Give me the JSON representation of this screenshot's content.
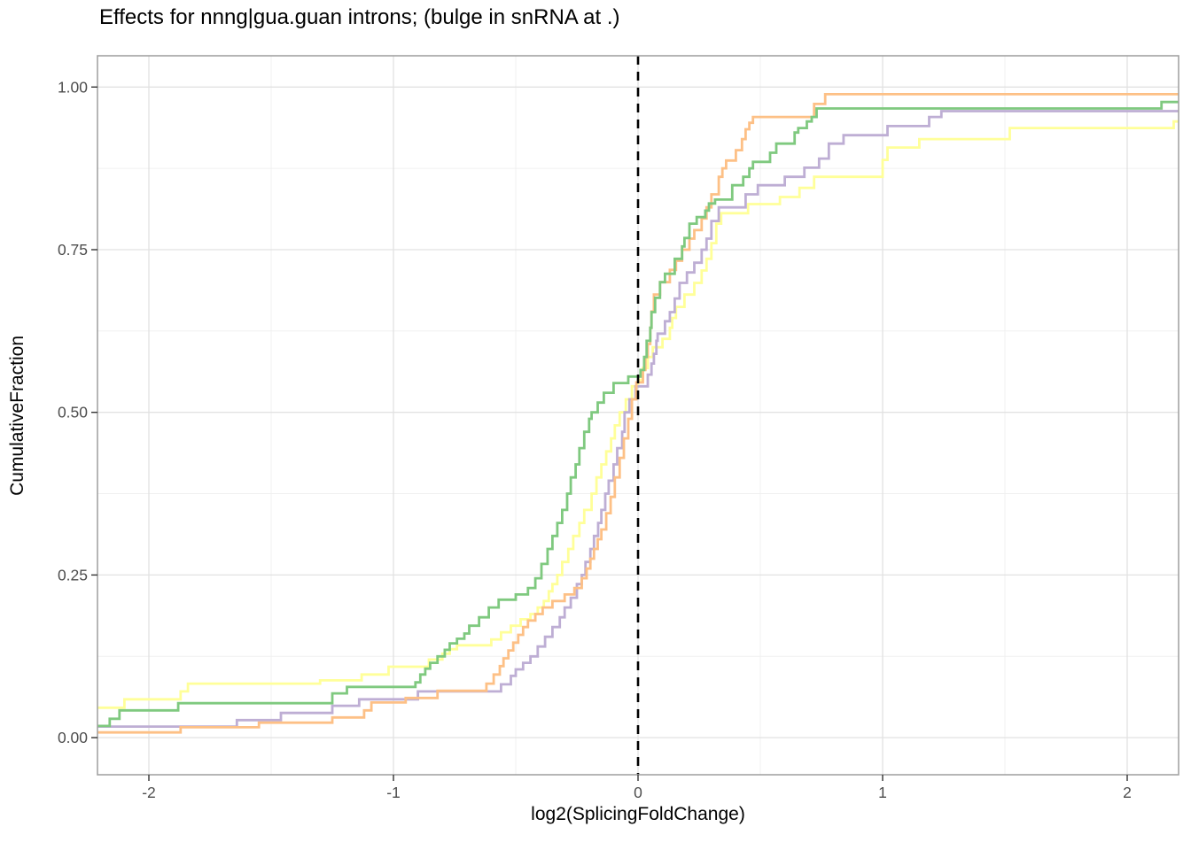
{
  "chart_data": {
    "type": "line",
    "subtype": "ecdf_step",
    "title": "Effects for nnng|gua.guan introns; (bulge in snRNA at .)",
    "xlabel": "log2(SplicingFoldChange)",
    "ylabel": "CumulativeFraction",
    "xlim": [
      -2.21,
      2.21
    ],
    "ylim": [
      -0.057,
      1.048
    ],
    "grid": true,
    "legend": "none",
    "xticks": {
      "values": [
        -2,
        -1,
        0,
        1,
        2
      ],
      "labels": [
        "-2",
        "-1",
        "0",
        "1",
        "2"
      ]
    },
    "yticks": {
      "values": [
        0,
        0.25,
        0.5,
        0.75,
        1
      ],
      "labels": [
        "0.00",
        "0.25",
        "0.50",
        "0.75",
        "1.00"
      ]
    },
    "xminor": [
      -1.5,
      -0.5,
      0.5,
      1.5
    ],
    "yminor": [
      0.125,
      0.375,
      0.625,
      0.875
    ],
    "vline": {
      "x": 0,
      "style": "dashed",
      "color": "#000000"
    },
    "panel_border_color": "#a3a3a3",
    "grid_major_color": "#e2e2e2",
    "grid_minor_color": "#f0f0f0",
    "tick_color": "#333333",
    "series": [
      {
        "name": "yellow",
        "color": "#FFFF99",
        "points": [
          [
            -2.21,
            0.046
          ],
          [
            -2.1,
            0.059
          ],
          [
            -1.87,
            0.071
          ],
          [
            -1.84,
            0.083
          ],
          [
            -1.3,
            0.088
          ],
          [
            -1.13,
            0.097
          ],
          [
            -1.02,
            0.109
          ],
          [
            -0.855,
            0.12
          ],
          [
            -0.8,
            0.129
          ],
          [
            -0.77,
            0.136
          ],
          [
            -0.74,
            0.142
          ],
          [
            -0.6,
            0.151
          ],
          [
            -0.56,
            0.162
          ],
          [
            -0.52,
            0.172
          ],
          [
            -0.48,
            0.182
          ],
          [
            -0.44,
            0.19
          ],
          [
            -0.41,
            0.2
          ],
          [
            -0.385,
            0.21
          ],
          [
            -0.365,
            0.225
          ],
          [
            -0.35,
            0.236
          ],
          [
            -0.33,
            0.25
          ],
          [
            -0.31,
            0.27
          ],
          [
            -0.285,
            0.29
          ],
          [
            -0.265,
            0.31
          ],
          [
            -0.24,
            0.33
          ],
          [
            -0.22,
            0.35
          ],
          [
            -0.19,
            0.375
          ],
          [
            -0.17,
            0.4
          ],
          [
            -0.15,
            0.42
          ],
          [
            -0.13,
            0.44
          ],
          [
            -0.11,
            0.46
          ],
          [
            -0.095,
            0.48
          ],
          [
            -0.075,
            0.5
          ],
          [
            -0.05,
            0.52
          ],
          [
            -0.025,
            0.54
          ],
          [
            0.0,
            0.55
          ],
          [
            0.02,
            0.568
          ],
          [
            0.04,
            0.585
          ],
          [
            0.06,
            0.6
          ],
          [
            0.1,
            0.613
          ],
          [
            0.13,
            0.63
          ],
          [
            0.14,
            0.645
          ],
          [
            0.155,
            0.662
          ],
          [
            0.19,
            0.681
          ],
          [
            0.23,
            0.699
          ],
          [
            0.26,
            0.718
          ],
          [
            0.28,
            0.736
          ],
          [
            0.3,
            0.76
          ],
          [
            0.32,
            0.79
          ],
          [
            0.34,
            0.806
          ],
          [
            0.45,
            0.82
          ],
          [
            0.58,
            0.831
          ],
          [
            0.66,
            0.845
          ],
          [
            0.72,
            0.862
          ],
          [
            1.0,
            0.888
          ],
          [
            1.02,
            0.907
          ],
          [
            1.15,
            0.92
          ],
          [
            1.52,
            0.937
          ],
          [
            2.19,
            0.947
          ]
        ]
      },
      {
        "name": "purple",
        "color": "#BEAED4",
        "points": [
          [
            -2.21,
            0.017
          ],
          [
            -1.64,
            0.027
          ],
          [
            -1.46,
            0.038
          ],
          [
            -1.25,
            0.049
          ],
          [
            -1.14,
            0.059
          ],
          [
            -0.9,
            0.071
          ],
          [
            -0.56,
            0.082
          ],
          [
            -0.52,
            0.095
          ],
          [
            -0.5,
            0.105
          ],
          [
            -0.47,
            0.115
          ],
          [
            -0.44,
            0.125
          ],
          [
            -0.41,
            0.14
          ],
          [
            -0.38,
            0.155
          ],
          [
            -0.35,
            0.17
          ],
          [
            -0.32,
            0.185
          ],
          [
            -0.3,
            0.2
          ],
          [
            -0.275,
            0.215
          ],
          [
            -0.25,
            0.236
          ],
          [
            -0.23,
            0.25
          ],
          [
            -0.215,
            0.27
          ],
          [
            -0.195,
            0.29
          ],
          [
            -0.18,
            0.31
          ],
          [
            -0.163,
            0.33
          ],
          [
            -0.15,
            0.35
          ],
          [
            -0.134,
            0.375
          ],
          [
            -0.12,
            0.395
          ],
          [
            -0.1,
            0.42
          ],
          [
            -0.085,
            0.445
          ],
          [
            -0.065,
            0.47
          ],
          [
            -0.055,
            0.5
          ],
          [
            -0.035,
            0.52
          ],
          [
            -0.01,
            0.54
          ],
          [
            0.04,
            0.558
          ],
          [
            0.055,
            0.575
          ],
          [
            0.065,
            0.59
          ],
          [
            0.075,
            0.61
          ],
          [
            0.08,
            0.621
          ],
          [
            0.11,
            0.64
          ],
          [
            0.13,
            0.654
          ],
          [
            0.15,
            0.675
          ],
          [
            0.17,
            0.699
          ],
          [
            0.2,
            0.715
          ],
          [
            0.23,
            0.73
          ],
          [
            0.26,
            0.75
          ],
          [
            0.28,
            0.767
          ],
          [
            0.3,
            0.794
          ],
          [
            0.33,
            0.815
          ],
          [
            0.44,
            0.835
          ],
          [
            0.49,
            0.849
          ],
          [
            0.6,
            0.862
          ],
          [
            0.68,
            0.876
          ],
          [
            0.74,
            0.89
          ],
          [
            0.78,
            0.913
          ],
          [
            0.84,
            0.926
          ],
          [
            1.02,
            0.94
          ],
          [
            1.19,
            0.954
          ],
          [
            1.24,
            0.963
          ]
        ]
      },
      {
        "name": "orange",
        "color": "#FDC086",
        "points": [
          [
            -2.21,
            0.008
          ],
          [
            -1.87,
            0.016
          ],
          [
            -1.55,
            0.023
          ],
          [
            -1.25,
            0.031
          ],
          [
            -1.12,
            0.042
          ],
          [
            -1.09,
            0.054
          ],
          [
            -0.95,
            0.061
          ],
          [
            -0.82,
            0.072
          ],
          [
            -0.62,
            0.083
          ],
          [
            -0.59,
            0.097
          ],
          [
            -0.565,
            0.11
          ],
          [
            -0.55,
            0.122
          ],
          [
            -0.53,
            0.134
          ],
          [
            -0.51,
            0.146
          ],
          [
            -0.49,
            0.158
          ],
          [
            -0.47,
            0.17
          ],
          [
            -0.45,
            0.18
          ],
          [
            -0.42,
            0.19
          ],
          [
            -0.39,
            0.2
          ],
          [
            -0.35,
            0.21
          ],
          [
            -0.3,
            0.22
          ],
          [
            -0.26,
            0.23
          ],
          [
            -0.23,
            0.245
          ],
          [
            -0.21,
            0.26
          ],
          [
            -0.195,
            0.275
          ],
          [
            -0.18,
            0.29
          ],
          [
            -0.165,
            0.305
          ],
          [
            -0.15,
            0.32
          ],
          [
            -0.13,
            0.345
          ],
          [
            -0.112,
            0.37
          ],
          [
            -0.095,
            0.4
          ],
          [
            -0.075,
            0.43
          ],
          [
            -0.058,
            0.46
          ],
          [
            -0.04,
            0.49
          ],
          [
            -0.025,
            0.52
          ],
          [
            -0.007,
            0.546
          ],
          [
            0.02,
            0.565
          ],
          [
            0.03,
            0.585
          ],
          [
            0.04,
            0.605
          ],
          [
            0.05,
            0.63
          ],
          [
            0.055,
            0.655
          ],
          [
            0.065,
            0.681
          ],
          [
            0.09,
            0.7
          ],
          [
            0.13,
            0.719
          ],
          [
            0.155,
            0.733
          ],
          [
            0.18,
            0.75
          ],
          [
            0.21,
            0.767
          ],
          [
            0.23,
            0.78
          ],
          [
            0.26,
            0.798
          ],
          [
            0.28,
            0.815
          ],
          [
            0.3,
            0.835
          ],
          [
            0.33,
            0.862
          ],
          [
            0.345,
            0.875
          ],
          [
            0.36,
            0.887
          ],
          [
            0.4,
            0.903
          ],
          [
            0.425,
            0.92
          ],
          [
            0.44,
            0.935
          ],
          [
            0.455,
            0.945
          ],
          [
            0.47,
            0.954
          ],
          [
            0.72,
            0.974
          ],
          [
            0.765,
            0.989
          ]
        ]
      },
      {
        "name": "green",
        "color": "#7FC97F",
        "points": [
          [
            -2.21,
            0.018
          ],
          [
            -2.16,
            0.029
          ],
          [
            -2.12,
            0.042
          ],
          [
            -1.88,
            0.053
          ],
          [
            -1.25,
            0.068
          ],
          [
            -1.19,
            0.078
          ],
          [
            -0.91,
            0.085
          ],
          [
            -0.89,
            0.097
          ],
          [
            -0.87,
            0.106
          ],
          [
            -0.85,
            0.115
          ],
          [
            -0.82,
            0.125
          ],
          [
            -0.79,
            0.135
          ],
          [
            -0.77,
            0.145
          ],
          [
            -0.74,
            0.152
          ],
          [
            -0.71,
            0.16
          ],
          [
            -0.69,
            0.172
          ],
          [
            -0.65,
            0.185
          ],
          [
            -0.61,
            0.2
          ],
          [
            -0.57,
            0.212
          ],
          [
            -0.5,
            0.22
          ],
          [
            -0.45,
            0.23
          ],
          [
            -0.42,
            0.245
          ],
          [
            -0.395,
            0.267
          ],
          [
            -0.37,
            0.29
          ],
          [
            -0.35,
            0.31
          ],
          [
            -0.33,
            0.33
          ],
          [
            -0.31,
            0.35
          ],
          [
            -0.29,
            0.375
          ],
          [
            -0.275,
            0.4
          ],
          [
            -0.255,
            0.42
          ],
          [
            -0.24,
            0.445
          ],
          [
            -0.22,
            0.47
          ],
          [
            -0.2,
            0.49
          ],
          [
            -0.19,
            0.5
          ],
          [
            -0.165,
            0.515
          ],
          [
            -0.14,
            0.53
          ],
          [
            -0.1,
            0.545
          ],
          [
            -0.04,
            0.555
          ],
          [
            0.01,
            0.565
          ],
          [
            0.025,
            0.585
          ],
          [
            0.035,
            0.61
          ],
          [
            0.05,
            0.63
          ],
          [
            0.055,
            0.654
          ],
          [
            0.07,
            0.676
          ],
          [
            0.09,
            0.7
          ],
          [
            0.11,
            0.713
          ],
          [
            0.15,
            0.736
          ],
          [
            0.18,
            0.755
          ],
          [
            0.19,
            0.768
          ],
          [
            0.21,
            0.79
          ],
          [
            0.24,
            0.8
          ],
          [
            0.275,
            0.81
          ],
          [
            0.29,
            0.821
          ],
          [
            0.315,
            0.827
          ],
          [
            0.385,
            0.849
          ],
          [
            0.43,
            0.862
          ],
          [
            0.455,
            0.875
          ],
          [
            0.47,
            0.885
          ],
          [
            0.54,
            0.899
          ],
          [
            0.565,
            0.913
          ],
          [
            0.64,
            0.93
          ],
          [
            0.655,
            0.937
          ],
          [
            0.69,
            0.947
          ],
          [
            0.71,
            0.954
          ],
          [
            0.73,
            0.967
          ],
          [
            2.14,
            0.977
          ]
        ]
      }
    ]
  }
}
